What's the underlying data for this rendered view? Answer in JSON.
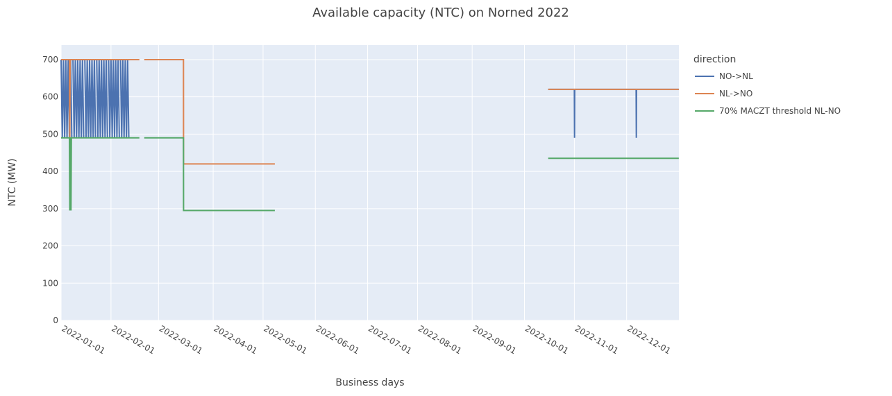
{
  "chart_data": {
    "type": "line",
    "title": "Available capacity (NTC) on Norned 2022",
    "x_label": "Business days",
    "y_label": "NTC (MW)",
    "legend_title": "direction",
    "legend_position": "right",
    "grid": true,
    "rangebreaks": "weekends",
    "xlim": [
      "2022-01-03 00:00",
      "2022-12-31 00:00"
    ],
    "xticks": [
      "2022-01-01",
      "2022-02-01",
      "2022-03-01",
      "2022-04-01",
      "2022-05-01",
      "2022-06-01",
      "2022-07-01",
      "2022-08-01",
      "2022-09-01",
      "2022-10-01",
      "2022-11-01",
      "2022-12-01"
    ],
    "ylim": [
      0,
      739
    ],
    "yticks": [
      0,
      100,
      200,
      300,
      400,
      500,
      600,
      700
    ],
    "series": [
      {
        "name": "NO->NL",
        "color": "#4c72b0",
        "x": [
          "2022-01-03 00:00",
          "2022-01-03 12:00",
          "2022-01-04 00:00",
          "2022-01-04 12:00",
          "2022-01-05 00:00",
          "2022-01-05 12:00",
          "2022-01-06 00:00",
          "2022-01-06 12:00",
          "2022-01-07 00:00",
          "2022-01-07 12:00",
          "2022-01-08",
          "2022-01-10 00:00",
          "2022-01-10 12:00",
          "2022-01-11 00:00",
          "2022-01-11 12:00",
          "2022-01-12 00:00",
          "2022-01-12 12:00",
          "2022-01-13 00:00",
          "2022-01-13 12:00",
          "2022-01-14 00:00",
          "2022-01-14 12:00",
          "2022-01-15",
          "2022-01-17 00:00",
          "2022-01-17 12:00",
          "2022-01-18 00:00",
          "2022-01-18 12:00",
          "2022-01-19 00:00",
          "2022-01-19 12:00",
          "2022-01-20 00:00",
          "2022-01-20 12:00",
          "2022-01-21 00:00",
          "2022-01-21 12:00",
          "2022-01-22",
          "2022-01-24 00:00",
          "2022-01-24 12:00",
          "2022-01-25 00:00",
          "2022-01-25 12:00",
          "2022-01-26 00:00",
          "2022-01-26 12:00",
          "2022-01-27 00:00",
          "2022-01-27 12:00",
          "2022-01-28 00:00",
          "2022-01-28 12:00",
          "2022-01-29",
          "2022-01-31 00:00",
          "2022-01-31 12:00",
          "2022-02-01 00:00",
          "2022-02-01 12:00",
          "2022-02-02 00:00",
          "2022-02-02 12:00",
          "2022-02-03 00:00",
          "2022-02-03 12:00",
          "2022-02-04 00:00",
          "2022-02-04 12:00",
          "2022-02-05",
          "2022-02-07 00:00",
          "2022-02-07 12:00",
          "2022-02-08 00:00",
          "2022-02-08 12:00",
          "2022-02-09 00:00",
          "2022-02-09 12:00",
          "2022-02-10 00:00",
          "2022-02-10 12:00",
          "2022-07-01",
          "2022-10-17 00:00",
          "2022-11-01 00:00",
          "2022-11-01 02:00",
          "2022-11-01 04:00",
          "2022-12-07 00:00",
          "2022-12-07 02:00",
          "2022-12-07 04:00",
          "2022-12-30 23:00"
        ],
        "values": [
          700,
          490,
          700,
          490,
          700,
          490,
          700,
          490,
          700,
          490,
          null,
          700,
          490,
          700,
          490,
          700,
          490,
          700,
          490,
          700,
          490,
          null,
          700,
          490,
          700,
          490,
          700,
          490,
          700,
          490,
          700,
          490,
          null,
          700,
          490,
          700,
          490,
          700,
          490,
          700,
          490,
          700,
          490,
          null,
          700,
          490,
          700,
          490,
          700,
          490,
          700,
          490,
          700,
          490,
          null,
          700,
          490,
          700,
          490,
          700,
          490,
          700,
          490,
          null,
          620,
          620,
          490,
          620,
          620,
          490,
          620,
          620
        ]
      },
      {
        "name": "NL->NO",
        "color": "#dd8452",
        "x": [
          "2022-01-03 00:00",
          "2022-01-06 12:00",
          "2022-01-06 16:00",
          "2022-01-06 20:00",
          "2022-02-16 23:00",
          "2022-02-18",
          "2022-02-21 00:00",
          "2022-03-15 12:00",
          "2022-03-15 13:00",
          "2022-05-06 23:00",
          "2022-07-01",
          "2022-10-17 00:00",
          "2022-12-30 23:00"
        ],
        "values": [
          700,
          700,
          490,
          700,
          700,
          null,
          700,
          700,
          420,
          420,
          null,
          620,
          620
        ]
      },
      {
        "name": "70% MACZT threshold NL-NO",
        "color": "#55a868",
        "x": [
          "2022-01-03 00:00",
          "2022-01-06 12:00",
          "2022-01-06 16:00",
          "2022-01-06 20:00",
          "2022-01-07 00:00",
          "2022-01-07 04:00",
          "2022-01-07 08:00",
          "2022-02-16 23:00",
          "2022-02-18",
          "2022-02-21 00:00",
          "2022-03-15 12:00",
          "2022-03-15 13:00",
          "2022-05-06 23:00",
          "2022-07-01",
          "2022-10-17 00:00",
          "2022-12-30 23:00"
        ],
        "values": [
          490,
          490,
          295,
          490,
          490,
          295,
          490,
          490,
          null,
          490,
          490,
          295,
          295,
          null,
          435,
          435
        ]
      }
    ]
  }
}
